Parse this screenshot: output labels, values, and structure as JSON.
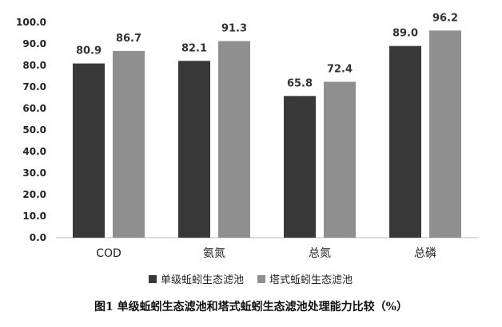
{
  "chart_data": {
    "type": "bar",
    "categories": [
      "COD",
      "氨氮",
      "总氮",
      "总磷"
    ],
    "series": [
      {
        "name": "单级蚯蚓生态滤池",
        "values": [
          80.9,
          82.1,
          65.8,
          89.0
        ],
        "color": "#383838"
      },
      {
        "name": "塔式蚯蚓生态滤池",
        "values": [
          86.7,
          91.3,
          72.4,
          96.2
        ],
        "color": "#8f8f8f"
      }
    ],
    "title": "",
    "xlabel": "",
    "ylabel": "",
    "ylim": [
      0,
      100
    ],
    "yticks": [
      "0.0",
      "10.0",
      "20.0",
      "30.0",
      "40.0",
      "50.0",
      "60.0",
      "70.0",
      "80.0",
      "90.0",
      "100.0"
    ],
    "grid": false,
    "legend_position": "bottom",
    "caption": "图1 单级蚯蚓生态滤池和塔式蚯蚓生态滤池处理能力比较（%）"
  }
}
